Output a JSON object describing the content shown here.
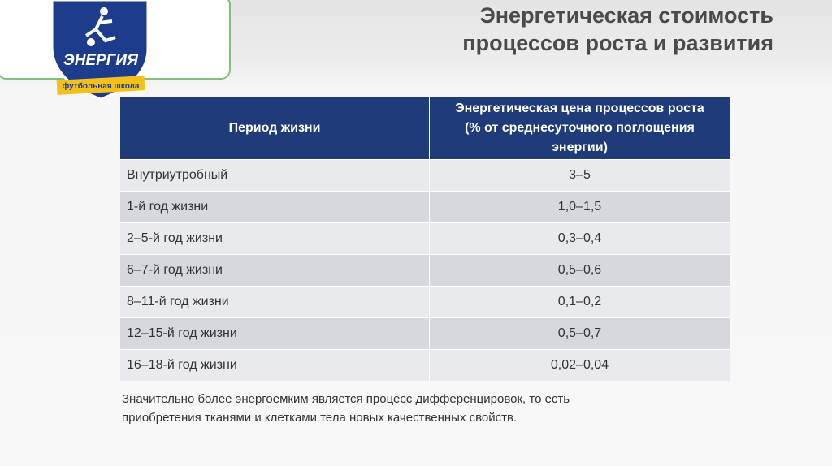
{
  "logo": {
    "name": "ЭНЕРГИЯ",
    "subtitle": "футбольная школа"
  },
  "header": {
    "title_lines": [
      "Энергетическая стоимость",
      "процессов роста и развития"
    ]
  },
  "table": {
    "columns": [
      "Период жизни",
      "Энергетическая цена процессов роста (% от среднесуточного поглощения энергии)"
    ],
    "rows": [
      [
        "Внутриутробный",
        "3–5"
      ],
      [
        "1-й год жизни",
        "1,0–1,5"
      ],
      [
        "2–5-й год жизни",
        "0,3–0,4"
      ],
      [
        "6–7-й год жизни",
        "0,5–0,6"
      ],
      [
        "8–11-й год жизни",
        "0,1–0,2"
      ],
      [
        "12–15-й год жизни",
        "0,5–0,7"
      ],
      [
        "16–18-й год жизни",
        "0,02–0,04"
      ]
    ]
  },
  "note": {
    "lines": [
      "Значительно более энергоемким является процесс дифференцировок, то есть",
      "приобретения тканями и клетками тела новых качественных свойств."
    ]
  }
}
